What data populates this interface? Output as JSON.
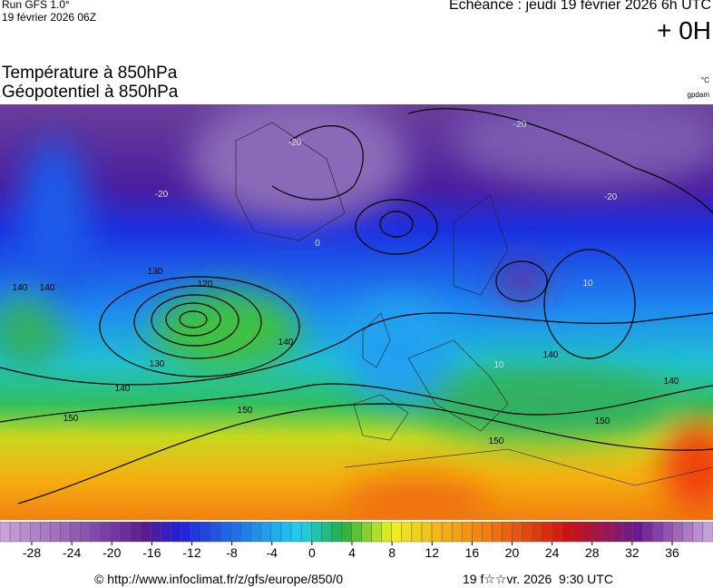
{
  "header": {
    "run": "Run GFS 1.0°",
    "run_date": "19 février 2026 06Z",
    "forecast": "Echéance : jeudi 19 février 2026 6h UTC",
    "lead": "+ 0H"
  },
  "titles": {
    "temperature": "Température à 850hPa",
    "geopotential": "Géopotentiel à 850hPa",
    "temperature_unit": "°C",
    "geopotential_unit": "gpdam"
  },
  "map": {
    "contour_labels": [
      "120",
      "130",
      "140",
      "140",
      "150",
      "150",
      "150",
      "140",
      "130",
      "140",
      "150",
      "-20",
      "-20",
      "-20",
      "-20",
      "0",
      "10",
      "10",
      "140",
      "140"
    ]
  },
  "colorbar": {
    "ticks": [
      -28,
      -24,
      -20,
      -16,
      -12,
      -8,
      -4,
      0,
      4,
      8,
      12,
      16,
      20,
      24,
      28,
      32,
      36
    ]
  },
  "footer": {
    "url": "© http://www.infoclimat.fr/z/gfs/europe/850/0",
    "generated": "19 f☆☆vr. 2026  9:30 UTC"
  }
}
